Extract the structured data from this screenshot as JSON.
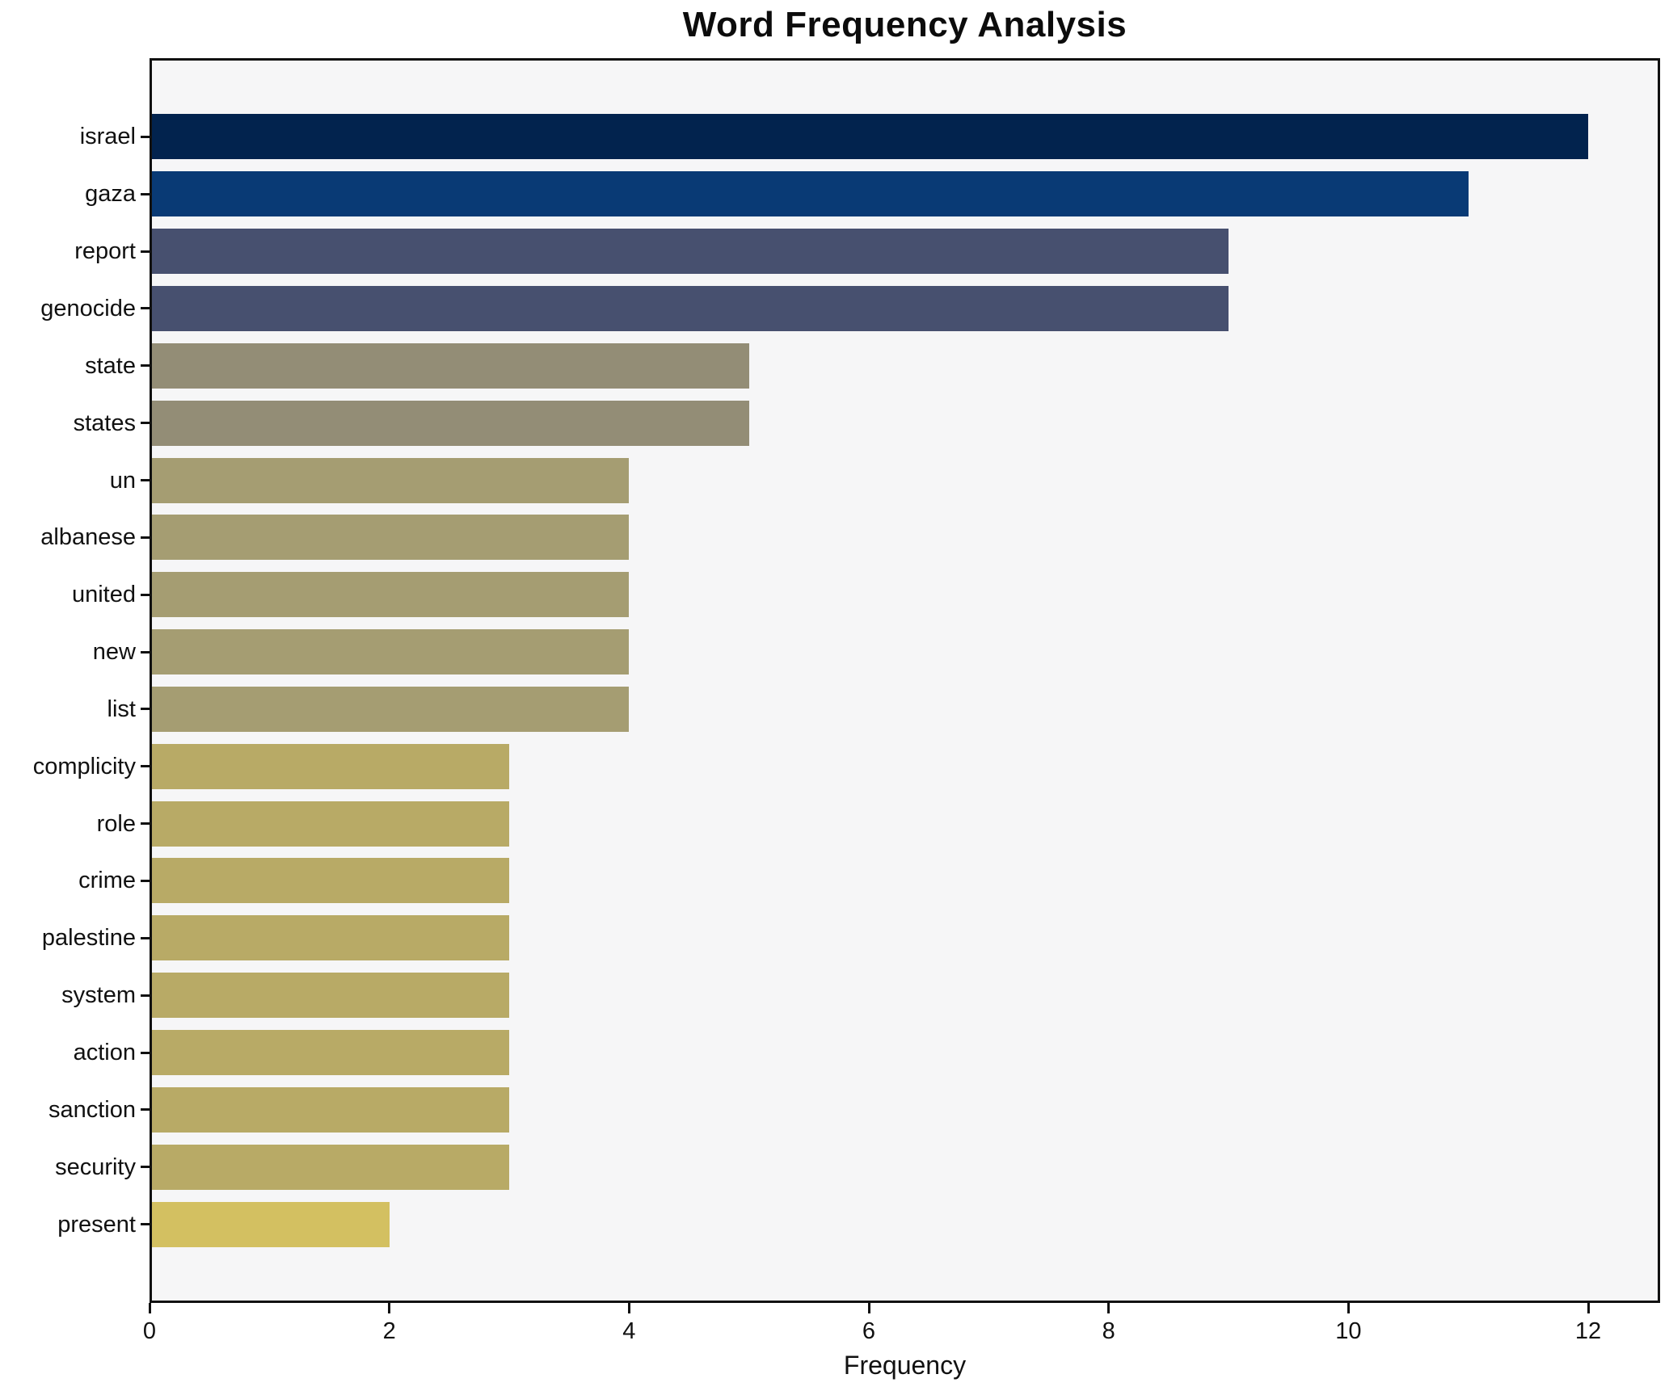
{
  "page": {
    "background": "#ffffff"
  },
  "chart_data": {
    "type": "bar",
    "orientation": "horizontal",
    "title": "Word Frequency Analysis",
    "xlabel": "Frequency",
    "ylabel": "",
    "categories": [
      "israel",
      "gaza",
      "report",
      "genocide",
      "state",
      "states",
      "un",
      "albanese",
      "united",
      "new",
      "list",
      "complicity",
      "role",
      "crime",
      "palestine",
      "system",
      "action",
      "sanction",
      "security",
      "present"
    ],
    "values": [
      12,
      11,
      9,
      9,
      5,
      5,
      4,
      4,
      4,
      4,
      4,
      3,
      3,
      3,
      3,
      3,
      3,
      3,
      3,
      2
    ],
    "bar_colors": [
      "#02234e",
      "#093a75",
      "#47506f",
      "#47506f",
      "#938d76",
      "#938d76",
      "#a59d72",
      "#a59d72",
      "#a59d72",
      "#a59d72",
      "#a59d72",
      "#b8aa66",
      "#b8aa66",
      "#b8aa66",
      "#b8aa66",
      "#b8aa66",
      "#b8aa66",
      "#b8aa66",
      "#b8aa66",
      "#d3c061"
    ],
    "xticks": [
      0,
      2,
      4,
      6,
      8,
      10,
      12
    ],
    "xlim": [
      0,
      12.6
    ],
    "grid": false,
    "legend": "none",
    "colormap": "cividis",
    "plot_background": "#f6f6f7",
    "frame_color": "#111111",
    "text_color": "#111111"
  }
}
